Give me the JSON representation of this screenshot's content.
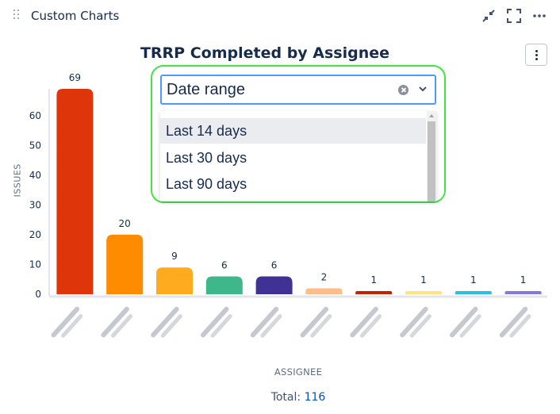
{
  "widget": {
    "title": "Custom Charts"
  },
  "header_icons": [
    "minimize-icon",
    "fullscreen-icon",
    "more-icon"
  ],
  "chart_data": {
    "type": "bar",
    "title": "TRRP Completed by Assignee",
    "xlabel": "ASSIGNEE",
    "ylabel": "ISSUES",
    "ylim": [
      0,
      69
    ],
    "yticks": [
      0,
      10,
      20,
      30,
      40,
      50,
      60
    ],
    "grid": false,
    "categories": [
      "",
      "",
      "",
      "",
      "",
      "",
      "",
      "",
      "",
      ""
    ],
    "values": [
      69,
      20,
      9,
      6,
      6,
      2,
      1,
      1,
      1,
      1
    ],
    "colors": [
      "#de350b",
      "#ff8b00",
      "#ffab1f",
      "#3eb88a",
      "#403294",
      "#ffbd8a",
      "#bf2600",
      "#ffe380",
      "#2bc0e0",
      "#8777d9"
    ]
  },
  "summary": {
    "total_label": "Total:",
    "total_value": "116"
  },
  "date_dropdown": {
    "placeholder": "Date range",
    "options": [
      "Last 14 days",
      "Last 30 days",
      "Last 90 days"
    ]
  }
}
